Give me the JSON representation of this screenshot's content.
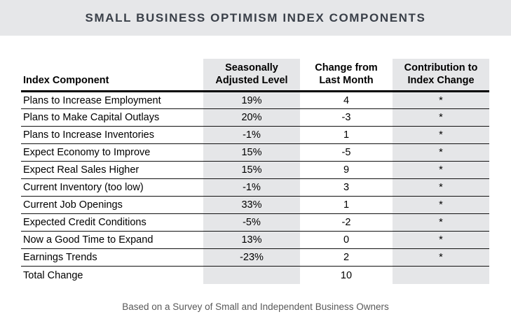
{
  "chart_data": {
    "type": "table",
    "title": "SMALL BUSINESS OPTIMISM INDEX COMPONENTS",
    "columns": [
      {
        "lines": [
          "Index Component"
        ]
      },
      {
        "lines": [
          "Seasonally",
          "Adjusted Level"
        ]
      },
      {
        "lines": [
          "Change from",
          "Last Month"
        ]
      },
      {
        "lines": [
          "Contribution to",
          "Index Change"
        ]
      }
    ],
    "rows": [
      {
        "component": "Plans to Increase Employment",
        "level": "19%",
        "change": "4",
        "contribution": "*"
      },
      {
        "component": "Plans to Make Capital Outlays",
        "level": "20%",
        "change": "-3",
        "contribution": "*"
      },
      {
        "component": "Plans to Increase Inventories",
        "level": "-1%",
        "change": "1",
        "contribution": "*"
      },
      {
        "component": "Expect Economy to Improve",
        "level": "15%",
        "change": "-5",
        "contribution": "*"
      },
      {
        "component": "Expect Real Sales Higher",
        "level": "15%",
        "change": "9",
        "contribution": "*"
      },
      {
        "component": "Current Inventory (too low)",
        "level": "-1%",
        "change": "3",
        "contribution": "*"
      },
      {
        "component": "Current Job Openings",
        "level": "33%",
        "change": "1",
        "contribution": "*"
      },
      {
        "component": "Expected Credit Conditions",
        "level": "-5%",
        "change": "-2",
        "contribution": "*"
      },
      {
        "component": "Now a Good Time to Expand",
        "level": "13%",
        "change": "0",
        "contribution": "*"
      },
      {
        "component": "Earnings Trends",
        "level": "-23%",
        "change": "2",
        "contribution": "*"
      },
      {
        "component": "Total Change",
        "level": "",
        "change": "10",
        "contribution": "",
        "is_total": true
      }
    ],
    "footnote": "Based on a Survey of Small and Independent Business Owners",
    "layout": {
      "shaded_columns": [
        "Seasonally Adjusted Level",
        "Contribution to Index Change"
      ],
      "grid": "horizontal-rules-only"
    }
  },
  "colors": {
    "title_bar_bg": "#e6e7e9",
    "title_text": "#3a4049",
    "shaded_column_bg": "#e5e6e8",
    "border": "#000000",
    "footnote_text": "#595959"
  }
}
